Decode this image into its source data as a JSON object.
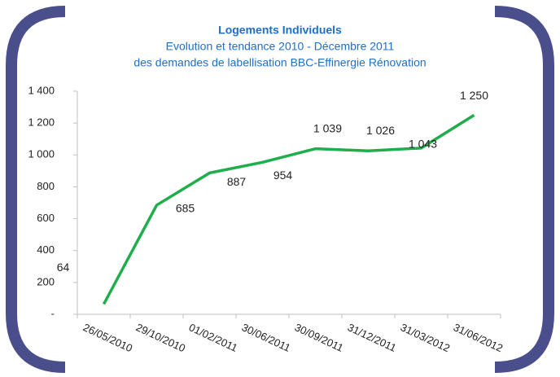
{
  "chart_data": {
    "type": "line",
    "title": "Logements Individuels",
    "subtitle": [
      "Evolution et tendance 2010 - Décembre 2011",
      "des demandes de labellisation BBC-Effinergie Rénovation"
    ],
    "categories": [
      "26/05/2010",
      "29/10/2010",
      "01/02/2011",
      "30/06/2011",
      "30/09/2011",
      "31/12/2011",
      "31/03/2012",
      "31/06/2012"
    ],
    "values": [
      64,
      685,
      887,
      954,
      1039,
      1026,
      1043,
      1250
    ],
    "value_labels": [
      "64",
      "685",
      "887",
      "954",
      "1 039",
      "1 026",
      "1 043",
      "1 250"
    ],
    "color": "#1fae4b",
    "ylim": [
      0,
      1400
    ],
    "yticks": [
      {
        "value": 0,
        "label": "-"
      },
      200,
      400,
      600,
      800,
      {
        "value": 1000,
        "label": "1 000"
      },
      {
        "value": 1200,
        "label": "1 200"
      },
      {
        "value": 1400,
        "label": "1 400"
      }
    ],
    "grid": false
  }
}
